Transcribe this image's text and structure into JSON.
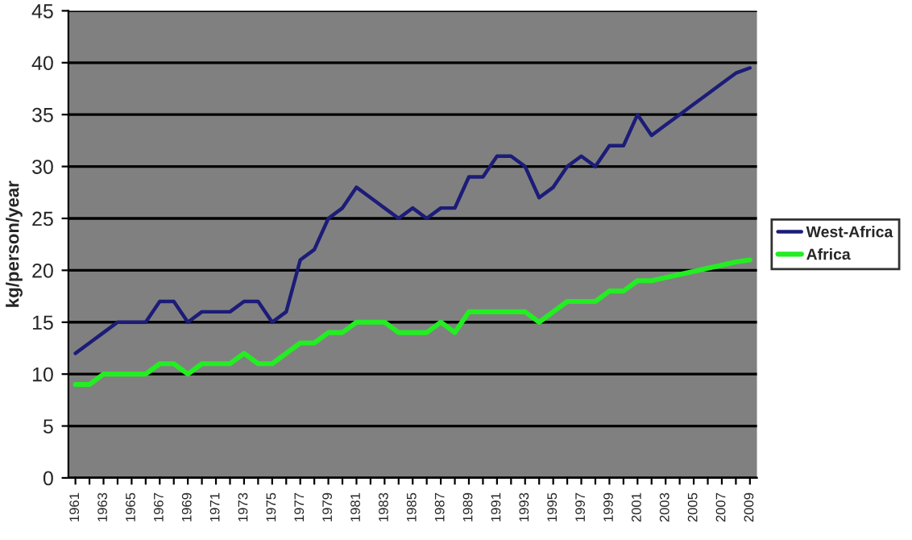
{
  "chart_data": {
    "type": "line",
    "ylabel": "kg/person/year",
    "categories": [
      "1961",
      null,
      "1963",
      null,
      "1965",
      null,
      "1967",
      null,
      "1969",
      null,
      "1971",
      null,
      "1973",
      null,
      "1975",
      null,
      "1977",
      null,
      "1979",
      null,
      "1981",
      null,
      "1983",
      null,
      "1985",
      null,
      "1987",
      null,
      "1989",
      null,
      "1991",
      null,
      "1993",
      null,
      "1995",
      null,
      "1997",
      null,
      "1999",
      null,
      "2001",
      null,
      "2003",
      null,
      "2005",
      null,
      "2007",
      null,
      "2009"
    ],
    "series": [
      {
        "name": "West-Africa",
        "color": "#1c1c78",
        "values": [
          12,
          13,
          14,
          15,
          15,
          15,
          17,
          17,
          15,
          16,
          16,
          16,
          17,
          17,
          15,
          16,
          21,
          22,
          25,
          26,
          28,
          27,
          26,
          25,
          26,
          25,
          26,
          26,
          29,
          29,
          31,
          31,
          30,
          27,
          28,
          30,
          31,
          30,
          32,
          32,
          35,
          33,
          34,
          35,
          36,
          37,
          38,
          39,
          39.5
        ]
      },
      {
        "name": "Africa",
        "color": "#22ee22",
        "values": [
          9,
          9,
          10,
          10,
          10,
          10,
          11,
          11,
          10,
          11,
          11,
          11,
          12,
          11,
          11,
          12,
          13,
          13,
          14,
          14,
          15,
          15,
          15,
          14,
          14,
          14,
          15,
          14,
          16,
          16,
          16,
          16,
          16,
          15,
          16,
          17,
          17,
          17,
          18,
          18,
          19,
          19,
          19.3,
          19.6,
          19.9,
          20.2,
          20.5,
          20.8,
          21
        ]
      }
    ],
    "ylim": [
      0,
      45
    ],
    "yticks": [
      0,
      5,
      10,
      15,
      20,
      25,
      30,
      35,
      40,
      45
    ],
    "grid": "y",
    "legend": "right",
    "marker": "none",
    "line_style": "solid"
  }
}
